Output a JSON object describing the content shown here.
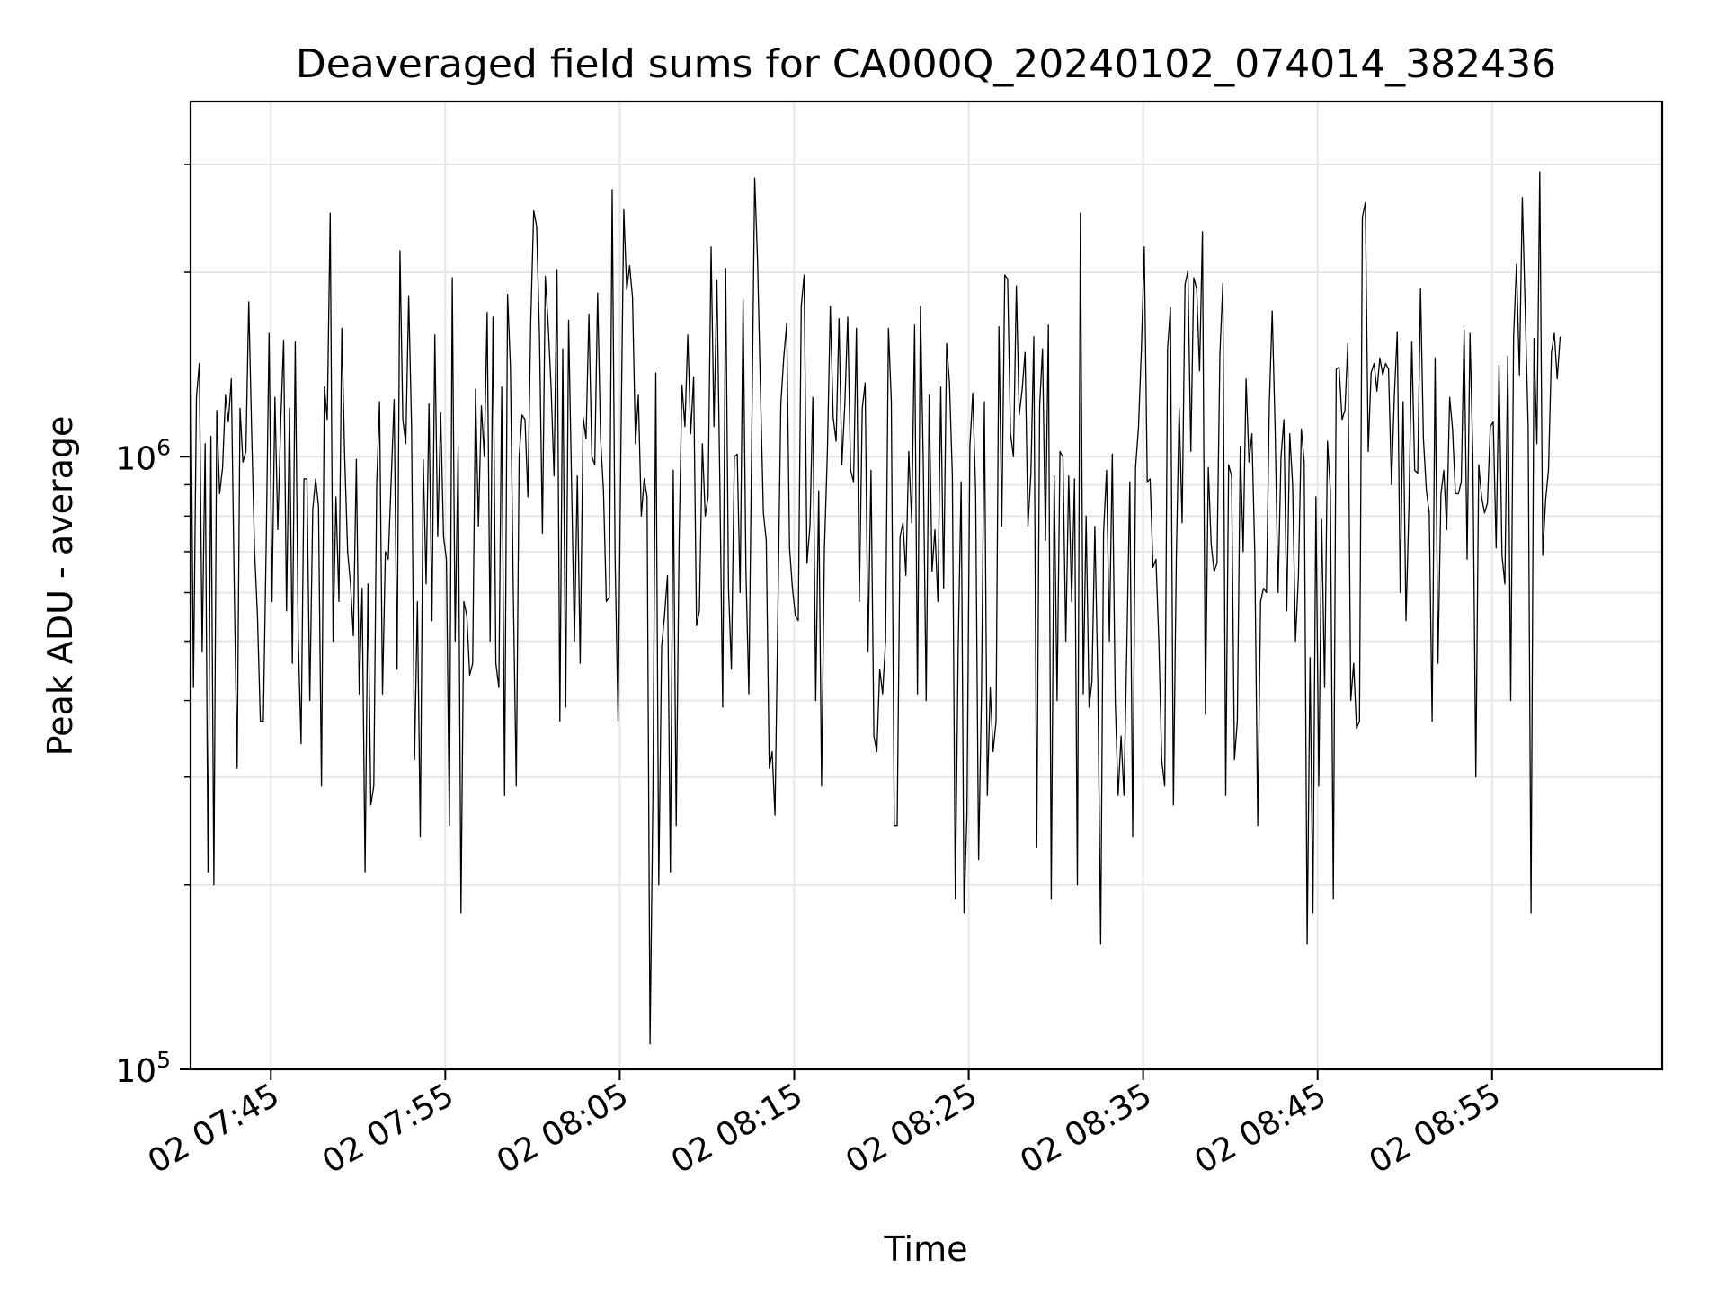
{
  "chart_data": {
    "type": "line",
    "title": "Deaveraged field sums for CA000Q_20240102_074014_382436",
    "xlabel": "Time",
    "ylabel": "Peak ADU - average",
    "yscale": "log",
    "ylim": [
      100000,
      3800000
    ],
    "xlim": [
      "2024-01-02 07:40:24",
      "2024-01-02 09:04:45"
    ],
    "grid": true,
    "line_color": "#000000",
    "x_ticks": [
      {
        "value": "2024-01-02 07:45",
        "label": "02 07:45"
      },
      {
        "value": "2024-01-02 07:55",
        "label": "02 07:55"
      },
      {
        "value": "2024-01-02 08:05",
        "label": "02 08:05"
      },
      {
        "value": "2024-01-02 08:15",
        "label": "02 08:15"
      },
      {
        "value": "2024-01-02 08:25",
        "label": "02 08:25"
      },
      {
        "value": "2024-01-02 08:35",
        "label": "02 08:35"
      },
      {
        "value": "2024-01-02 08:45",
        "label": "02 08:45"
      },
      {
        "value": "2024-01-02 08:55",
        "label": "02 08:55"
      }
    ],
    "y_ticks": [
      {
        "value": 100000,
        "base": "10",
        "exp": "5"
      },
      {
        "value": 1000000,
        "base": "10",
        "exp": "6"
      }
    ],
    "series": [
      {
        "x_start": "2024-01-02 07:40:24",
        "x_step_seconds": 10,
        "values": [
          1580000,
          420000,
          1250000,
          1420000,
          480000,
          1050000,
          210000,
          1080000,
          200000,
          1190000,
          870000,
          960000,
          1260000,
          1140000,
          1340000,
          620000,
          310000,
          1200000,
          980000,
          1020000,
          1790000,
          1100000,
          700000,
          550000,
          370000,
          370000,
          720000,
          1590000,
          580000,
          1250000,
          760000,
          1140000,
          1550000,
          560000,
          1200000,
          460000,
          1540000,
          510000,
          340000,
          920000,
          920000,
          400000,
          820000,
          920000,
          830000,
          290000,
          1300000,
          1150000,
          2500000,
          500000,
          860000,
          580000,
          1620000,
          1000000,
          700000,
          620000,
          510000,
          990000,
          410000,
          610000,
          210000,
          620000,
          270000,
          290000,
          900000,
          1230000,
          410000,
          700000,
          680000,
          920000,
          1240000,
          450000,
          2170000,
          1150000,
          1050000,
          1830000,
          1120000,
          320000,
          580000,
          240000,
          990000,
          620000,
          1220000,
          540000,
          1580000,
          740000,
          1180000,
          740000,
          680000,
          250000,
          1960000,
          500000,
          1040000,
          180000,
          580000,
          550000,
          440000,
          460000,
          1290000,
          770000,
          1210000,
          1000000,
          1720000,
          500000,
          1690000,
          460000,
          420000,
          1300000,
          280000,
          1840000,
          1400000,
          600000,
          290000,
          1000000,
          1170000,
          1150000,
          860000,
          1660000,
          2520000,
          2380000,
          1580000,
          750000,
          1970000,
          1640000,
          1290000,
          930000,
          2020000,
          370000,
          1500000,
          390000,
          1670000,
          920000,
          500000,
          930000,
          460000,
          1160000,
          1070000,
          1710000,
          1000000,
          970000,
          1850000,
          1070000,
          880000,
          580000,
          590000,
          2730000,
          690000,
          370000,
          1040000,
          2530000,
          1870000,
          2050000,
          1820000,
          1050000,
          1260000,
          800000,
          920000,
          860000,
          110000,
          280000,
          1370000,
          200000,
          490000,
          550000,
          640000,
          210000,
          950000,
          250000,
          720000,
          1310000,
          1120000,
          1580000,
          1090000,
          1350000,
          530000,
          560000,
          1050000,
          800000,
          860000,
          2200000,
          1120000,
          1940000,
          920000,
          390000,
          2030000,
          610000,
          450000,
          1000000,
          1010000,
          600000,
          1800000,
          650000,
          410000,
          1100000,
          2850000,
          2090000,
          1270000,
          810000,
          730000,
          310000,
          330000,
          260000,
          570000,
          1220000,
          1450000,
          1650000,
          710000,
          610000,
          550000,
          540000,
          1760000,
          1980000,
          670000,
          770000,
          1250000,
          400000,
          880000,
          290000,
          710000,
          1020000,
          1760000,
          1160000,
          1060000,
          1680000,
          970000,
          1220000,
          1690000,
          950000,
          910000,
          1620000,
          580000,
          1200000,
          1320000,
          480000,
          950000,
          350000,
          330000,
          450000,
          410000,
          500000,
          1620000,
          1230000,
          250000,
          250000,
          740000,
          780000,
          640000,
          1020000,
          780000,
          1640000,
          410000,
          1760000,
          970000,
          400000,
          1260000,
          650000,
          760000,
          580000,
          1300000,
          610000,
          1530000,
          1320000,
          930000,
          190000,
          490000,
          910000,
          180000,
          260000,
          1040000,
          1270000,
          880000,
          220000,
          410000,
          1230000,
          280000,
          420000,
          330000,
          370000,
          1630000,
          770000,
          1980000,
          1950000,
          1090000,
          1000000,
          1900000,
          1170000,
          1290000,
          1480000,
          770000,
          940000,
          1570000,
          230000,
          1210000,
          1500000,
          730000,
          1640000,
          190000,
          930000,
          400000,
          1020000,
          1000000,
          500000,
          930000,
          580000,
          920000,
          200000,
          2500000,
          410000,
          800000,
          390000,
          430000,
          770000,
          430000,
          160000,
          750000,
          950000,
          500000,
          1010000,
          400000,
          280000,
          350000,
          280000,
          490000,
          910000,
          240000,
          960000,
          1120000,
          1500000,
          2200000,
          910000,
          920000,
          660000,
          680000,
          500000,
          320000,
          290000,
          1500000,
          1750000,
          270000,
          680000,
          1200000,
          780000,
          1910000,
          2010000,
          1020000,
          1960000,
          1880000,
          1380000,
          2330000,
          380000,
          960000,
          720000,
          650000,
          670000,
          1470000,
          1920000,
          280000,
          970000,
          930000,
          320000,
          370000,
          1040000,
          700000,
          1340000,
          980000,
          1090000,
          700000,
          250000,
          580000,
          610000,
          600000,
          1220000,
          1730000,
          1100000,
          600000,
          1000000,
          1150000,
          560000,
          1090000,
          900000,
          500000,
          640000,
          1110000,
          980000,
          160000,
          470000,
          180000,
          860000,
          290000,
          790000,
          420000,
          1060000,
          880000,
          190000,
          1390000,
          1400000,
          1150000,
          1190000,
          1530000,
          400000,
          460000,
          360000,
          370000,
          2460000,
          2600000,
          1020000,
          1370000,
          1420000,
          1280000,
          1450000,
          1360000,
          1420000,
          1390000,
          900000,
          1260000,
          1600000,
          600000,
          1230000,
          540000,
          830000,
          1540000,
          950000,
          940000,
          1880000,
          1070000,
          880000,
          810000,
          370000,
          1450000,
          460000,
          870000,
          950000,
          760000,
          1250000,
          1110000,
          870000,
          870000,
          910000,
          1610000,
          680000,
          1590000,
          1000000,
          300000,
          970000,
          860000,
          810000,
          840000,
          1120000,
          1140000,
          710000,
          1410000,
          690000,
          620000,
          1460000,
          400000,
          1570000,
          2060000,
          1360000,
          2650000,
          1720000,
          1120000,
          180000,
          1560000,
          1050000,
          2920000,
          690000,
          850000,
          950000,
          1480000,
          1590000,
          1340000,
          1570000
        ]
      }
    ]
  }
}
